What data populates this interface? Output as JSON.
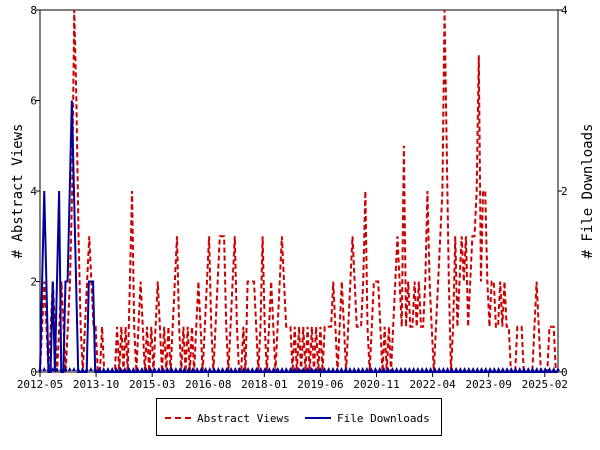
{
  "chart_data": {
    "type": "line",
    "xlabel": "",
    "ylabel_left": "# Abstract Views",
    "ylabel_right": "# File Downloads",
    "x_ticks": [
      "2012-05",
      "2013-10",
      "2015-03",
      "2016-08",
      "2018-01",
      "2019-06",
      "2020-11",
      "2022-04",
      "2023-09",
      "2025-02"
    ],
    "y_left_ticks": [
      "0",
      "2",
      "4",
      "6",
      "8"
    ],
    "y_right_ticks": [
      "0",
      "2",
      "4"
    ],
    "ylim_left": [
      0,
      8
    ],
    "ylim_right": [
      0,
      4
    ],
    "x_start": "2012-05",
    "x_end": "2025-06",
    "legend_position": "bottom",
    "grid": false,
    "series": [
      {
        "name": "Abstract Views",
        "axis": "left",
        "color": "#cc0000",
        "dash": "dashed",
        "values": [
          0,
          1,
          2,
          1,
          0,
          1,
          2,
          1,
          0,
          1,
          2,
          1,
          0,
          1,
          2,
          4,
          8,
          6,
          3,
          1,
          0,
          1,
          2,
          3,
          2,
          1,
          1,
          0,
          0,
          1,
          0,
          0,
          0,
          0,
          0,
          0,
          1,
          0,
          1,
          0,
          1,
          0,
          2,
          4,
          1,
          0,
          1,
          2,
          1,
          0,
          1,
          0,
          1,
          0,
          1,
          2,
          1,
          0,
          1,
          0,
          1,
          0,
          1,
          2,
          3,
          1,
          0,
          1,
          0,
          1,
          0,
          1,
          0,
          1,
          2,
          1,
          0,
          1,
          2,
          3,
          1,
          0,
          1,
          2,
          3,
          3,
          3,
          1,
          0,
          1,
          2,
          3,
          1,
          0,
          0,
          1,
          0,
          2,
          2,
          2,
          2,
          1,
          0,
          1,
          3,
          1,
          0,
          1,
          2,
          1,
          0,
          1,
          2,
          3,
          2,
          1,
          1,
          1,
          0,
          1,
          0,
          1,
          0,
          1,
          0,
          1,
          0,
          1,
          0,
          1,
          0,
          1,
          0,
          1,
          1,
          1,
          1,
          2,
          1,
          0,
          1,
          2,
          1,
          0,
          1,
          2,
          3,
          2,
          1,
          1,
          1,
          2,
          4,
          1,
          0,
          1,
          2,
          2,
          2,
          1,
          0,
          1,
          0,
          1,
          0,
          1,
          2,
          3,
          2,
          1,
          5,
          1,
          2,
          1,
          1,
          2,
          1,
          2,
          1,
          1,
          2,
          4,
          2,
          1,
          0,
          1,
          2,
          3,
          4,
          8,
          5,
          2,
          0,
          1,
          3,
          1,
          2,
          3,
          2,
          3,
          1,
          2,
          3,
          3,
          4,
          7,
          2,
          4,
          4,
          2,
          1,
          2,
          2,
          1,
          1,
          2,
          1,
          2,
          1,
          1,
          0,
          0,
          0,
          1,
          1,
          1,
          0,
          0,
          0,
          0,
          0,
          1,
          2,
          1,
          0,
          0,
          0,
          0,
          1,
          1,
          1,
          0,
          0
        ]
      },
      {
        "name": "File Downloads",
        "axis": "right",
        "color": "#000099",
        "dash": "solid",
        "values": [
          0,
          1,
          2,
          1,
          0,
          0,
          1,
          0,
          1,
          2,
          0,
          0,
          1,
          1,
          2,
          3,
          2,
          1,
          0,
          0,
          0,
          0,
          0,
          1,
          1,
          1,
          0,
          0,
          0,
          0,
          0,
          0,
          0,
          0,
          0,
          0,
          0,
          0,
          0,
          0,
          0,
          0,
          0,
          0,
          0,
          0,
          0,
          0,
          0,
          0,
          0,
          0,
          0,
          0,
          0,
          0,
          0,
          0,
          0,
          0,
          0,
          0,
          0,
          0,
          0,
          0,
          0,
          0,
          0,
          0,
          0,
          0,
          0,
          0,
          0,
          0,
          0,
          0,
          0,
          0,
          0,
          0,
          0,
          0,
          0,
          0,
          0,
          0,
          0,
          0,
          0,
          0,
          0,
          0,
          0,
          0,
          0,
          0,
          0,
          0,
          0,
          0,
          0,
          0,
          0,
          0,
          0,
          0,
          0,
          0,
          0,
          0,
          0,
          0,
          0,
          0,
          0,
          0,
          0,
          0,
          0,
          0,
          0,
          0,
          0,
          0,
          0,
          0,
          0,
          0,
          0,
          0,
          0,
          0,
          0,
          0,
          0,
          0,
          0,
          0,
          0,
          0,
          0,
          0,
          0,
          0,
          0,
          0,
          0,
          0,
          0,
          0,
          0,
          0,
          0,
          0,
          0,
          0,
          0,
          0,
          0,
          0,
          0,
          0,
          0,
          0,
          0,
          0,
          0,
          0,
          0,
          0,
          0,
          0,
          0,
          0,
          0,
          0,
          0,
          0,
          0,
          0,
          0,
          0,
          0,
          0,
          0,
          0,
          0,
          0,
          0,
          0,
          0,
          0,
          0,
          0,
          0,
          0,
          0,
          0,
          0,
          0,
          0,
          0,
          0,
          0,
          0,
          0,
          0,
          0,
          0,
          0,
          0,
          0,
          0,
          0,
          0,
          0,
          0,
          0,
          0,
          0,
          0,
          0,
          0,
          0,
          0,
          0,
          0,
          0,
          0,
          0,
          0,
          0,
          0,
          0,
          0,
          0,
          0,
          0,
          0,
          0,
          0,
          0,
          0
        ]
      }
    ]
  }
}
